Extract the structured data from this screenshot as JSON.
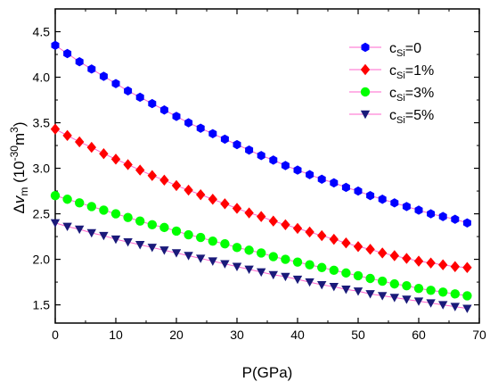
{
  "chart_data": {
    "type": "scatter",
    "title": "",
    "xlabel": "P(GPa)",
    "ylabel": {
      "prefix": "Δ",
      "var": "v",
      "sub": "m",
      "unit_open": " (10",
      "exp": "-30",
      "unit_mid": "m",
      "exp2": "3",
      "unit_close": ")"
    },
    "xlim": [
      0,
      70
    ],
    "ylim": [
      1.3,
      4.75
    ],
    "xticks": [
      "0",
      "10",
      "20",
      "30",
      "40",
      "50",
      "60",
      "70"
    ],
    "yticks": [
      "1.5",
      "2.0",
      "2.5",
      "3.0",
      "3.5",
      "4.0",
      "4.5"
    ],
    "legend_position": "top-right",
    "x": [
      0,
      2,
      4,
      6,
      8,
      10,
      12,
      14,
      16,
      18,
      20,
      22,
      24,
      26,
      28,
      30,
      32,
      34,
      36,
      38,
      40,
      42,
      44,
      46,
      48,
      50,
      52,
      54,
      56,
      58,
      60,
      62,
      64,
      66,
      68
    ],
    "series": [
      {
        "name": {
          "base": "c",
          "sub": "Si",
          "value": "=0"
        },
        "color": "#0000ff",
        "marker": "hexagon",
        "values": [
          4.35,
          4.26,
          4.17,
          4.09,
          4.01,
          3.93,
          3.85,
          3.78,
          3.71,
          3.64,
          3.57,
          3.5,
          3.44,
          3.38,
          3.32,
          3.26,
          3.2,
          3.14,
          3.09,
          3.03,
          2.98,
          2.93,
          2.88,
          2.84,
          2.79,
          2.75,
          2.7,
          2.66,
          2.62,
          2.58,
          2.54,
          2.5,
          2.47,
          2.44,
          2.4
        ]
      },
      {
        "name": {
          "base": "c",
          "sub": "Si",
          "value": "=1%"
        },
        "color": "#ff0000",
        "marker": "diamond",
        "values": [
          3.43,
          3.36,
          3.29,
          3.23,
          3.16,
          3.1,
          3.04,
          2.98,
          2.92,
          2.87,
          2.81,
          2.76,
          2.71,
          2.66,
          2.61,
          2.56,
          2.51,
          2.47,
          2.42,
          2.38,
          2.34,
          2.3,
          2.26,
          2.22,
          2.18,
          2.14,
          2.11,
          2.07,
          2.04,
          2.01,
          1.98,
          1.96,
          1.94,
          1.92,
          1.91
        ]
      },
      {
        "name": {
          "base": "c",
          "sub": "Si",
          "value": "=3%"
        },
        "color": "#00ff00",
        "marker": "circle",
        "values": [
          2.7,
          2.66,
          2.62,
          2.58,
          2.54,
          2.5,
          2.46,
          2.42,
          2.38,
          2.35,
          2.31,
          2.27,
          2.24,
          2.2,
          2.17,
          2.13,
          2.1,
          2.07,
          2.03,
          2.0,
          1.97,
          1.94,
          1.91,
          1.88,
          1.85,
          1.82,
          1.79,
          1.76,
          1.73,
          1.71,
          1.68,
          1.66,
          1.64,
          1.62,
          1.6
        ]
      },
      {
        "name": {
          "base": "c",
          "sub": "Si",
          "value": "=5%"
        },
        "color": "#1a1a7a",
        "marker": "triangle-down",
        "values": [
          2.4,
          2.36,
          2.33,
          2.29,
          2.26,
          2.22,
          2.19,
          2.16,
          2.13,
          2.1,
          2.07,
          2.04,
          2.01,
          1.98,
          1.95,
          1.92,
          1.89,
          1.86,
          1.83,
          1.81,
          1.78,
          1.75,
          1.72,
          1.7,
          1.67,
          1.65,
          1.62,
          1.6,
          1.58,
          1.56,
          1.54,
          1.52,
          1.5,
          1.48,
          1.46
        ]
      }
    ]
  }
}
